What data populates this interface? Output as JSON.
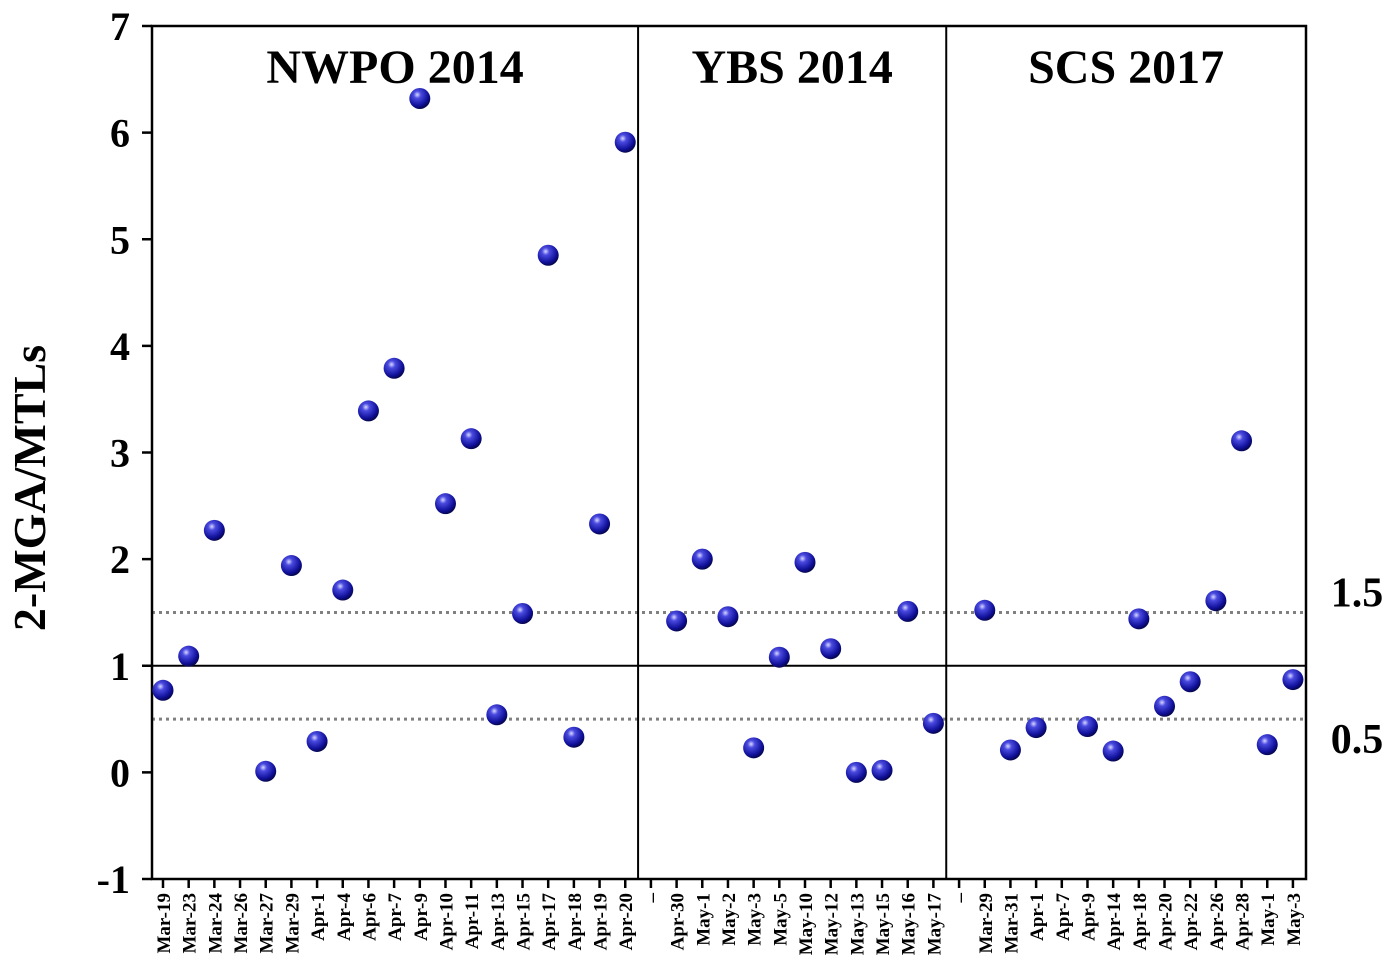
{
  "chart_data": {
    "type": "scatter",
    "ylabel": "2-MGA/MTLs",
    "xlabel": "",
    "ylim": [
      -1,
      7
    ],
    "yticks": [
      -1,
      0,
      1,
      2,
      3,
      4,
      5,
      6,
      7
    ],
    "grid": false,
    "marker_color": "#1a1aa8",
    "reference_lines": [
      {
        "y": 1.5,
        "style": "dotted",
        "color": "#808080",
        "label": "1.5"
      },
      {
        "y": 1,
        "style": "solid",
        "color": "#000000"
      },
      {
        "y": 0.5,
        "style": "dotted",
        "color": "#808080",
        "label": "0.5"
      }
    ],
    "x_tick_labels": [
      "Mar-19",
      "Mar-23",
      "Mar-24",
      "Mar-26",
      "Mar-27",
      "Mar-29",
      "Apr-1",
      "Apr-4",
      "Apr-6",
      "Apr-7",
      "Apr-9",
      "Apr-10",
      "Apr-11",
      "Apr-13",
      "Apr-15",
      "Apr-17",
      "Apr-18",
      "Apr-19",
      "Apr-20",
      "–",
      "Apr-30",
      "May-1",
      "May-2",
      "May-3",
      "May-5",
      "May-10",
      "May-12",
      "May-13",
      "May-15",
      "May-16",
      "May-17",
      "–",
      "Mar-29",
      "Mar-31",
      "Apr-1",
      "Apr-7",
      "Apr-9",
      "Apr-14",
      "Apr-18",
      "Apr-20",
      "Apr-22",
      "Apr-26",
      "Apr-28",
      "May-1",
      "May-3"
    ],
    "panels": [
      {
        "name": "NWPO 2014",
        "points": [
          [
            "Mar-19",
            0.77
          ],
          [
            "Mar-23",
            1.09
          ],
          [
            "Mar-24",
            2.27
          ],
          [
            "Mar-26",
            null
          ],
          [
            "Mar-27",
            0.01
          ],
          [
            "Mar-29",
            1.94
          ],
          [
            "Apr-1",
            0.29
          ],
          [
            "Apr-4",
            1.71
          ],
          [
            "Apr-6",
            3.39
          ],
          [
            "Apr-7",
            3.79
          ],
          [
            "Apr-9",
            6.32
          ],
          [
            "Apr-10",
            2.52
          ],
          [
            "Apr-11",
            3.13
          ],
          [
            "Apr-13",
            0.54
          ],
          [
            "Apr-15",
            1.49
          ],
          [
            "Apr-17",
            4.85
          ],
          [
            "Apr-18",
            0.33
          ],
          [
            "Apr-19",
            2.33
          ],
          [
            "Apr-20",
            5.91
          ]
        ]
      },
      {
        "name": "YBS 2014",
        "points": [
          [
            "Apr-30",
            1.42
          ],
          [
            "May-1",
            2.0
          ],
          [
            "May-2",
            1.46
          ],
          [
            "May-3",
            0.23
          ],
          [
            "May-5",
            1.08
          ],
          [
            "May-10",
            1.97
          ],
          [
            "May-12",
            1.16
          ],
          [
            "May-13",
            0.0
          ],
          [
            "May-15",
            0.02
          ],
          [
            "May-16",
            1.51
          ],
          [
            "May-17",
            0.46
          ]
        ]
      },
      {
        "name": "SCS 2017",
        "points": [
          [
            "Mar-29",
            1.52
          ],
          [
            "Mar-31",
            0.21
          ],
          [
            "Apr-1",
            0.42
          ],
          [
            "Apr-7",
            null
          ],
          [
            "Apr-9",
            0.43
          ],
          [
            "Apr-14",
            0.2
          ],
          [
            "Apr-18",
            1.44
          ],
          [
            "Apr-20",
            0.62
          ],
          [
            "Apr-22",
            0.85
          ],
          [
            "Apr-26",
            1.61
          ],
          [
            "Apr-28",
            3.11
          ],
          [
            "May-1",
            0.26
          ],
          [
            "May-3",
            0.87
          ]
        ]
      }
    ]
  }
}
